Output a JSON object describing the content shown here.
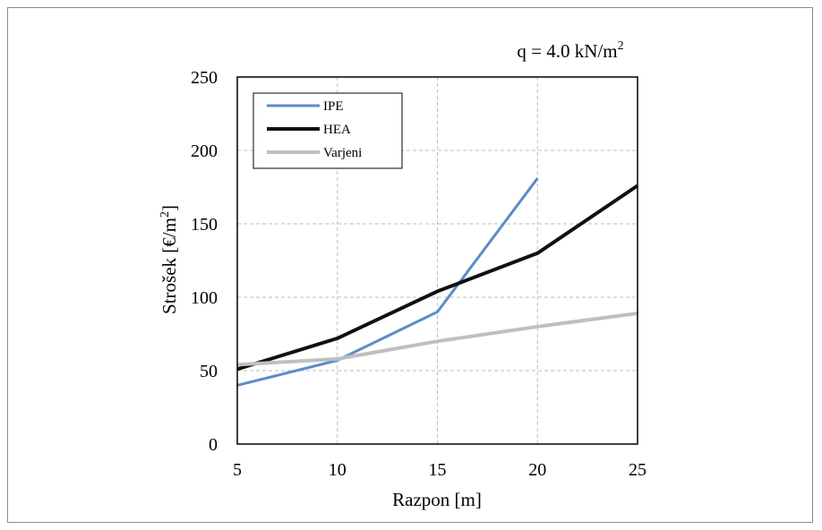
{
  "chart_data": {
    "type": "line",
    "annotation": {
      "main": "q = 4.0 kN/m",
      "sup": "2"
    },
    "xlabel": "Razpon [m]",
    "ylabel": {
      "main": "Strošek [€/m",
      "sup": "2",
      "tail": "]"
    },
    "xlim": [
      5,
      25
    ],
    "ylim": [
      0,
      250
    ],
    "xticks": [
      5,
      10,
      15,
      20,
      25
    ],
    "yticks": [
      0,
      50,
      100,
      150,
      200,
      250
    ],
    "grid": true,
    "legend_position": "top-left",
    "series": [
      {
        "name": "IPE",
        "color": "#5b8cc8",
        "width": 3,
        "x": [
          5,
          10,
          15,
          20
        ],
        "y": [
          40,
          57,
          90,
          181
        ]
      },
      {
        "name": "HEA",
        "color": "#111111",
        "width": 4,
        "x": [
          5,
          10,
          15,
          20,
          25
        ],
        "y": [
          51,
          72,
          104,
          130,
          176
        ]
      },
      {
        "name": "Varjeni",
        "color": "#bfbfbf",
        "width": 4,
        "x": [
          5,
          10,
          15,
          20,
          25
        ],
        "y": [
          54,
          58,
          70,
          80,
          89
        ]
      }
    ]
  }
}
